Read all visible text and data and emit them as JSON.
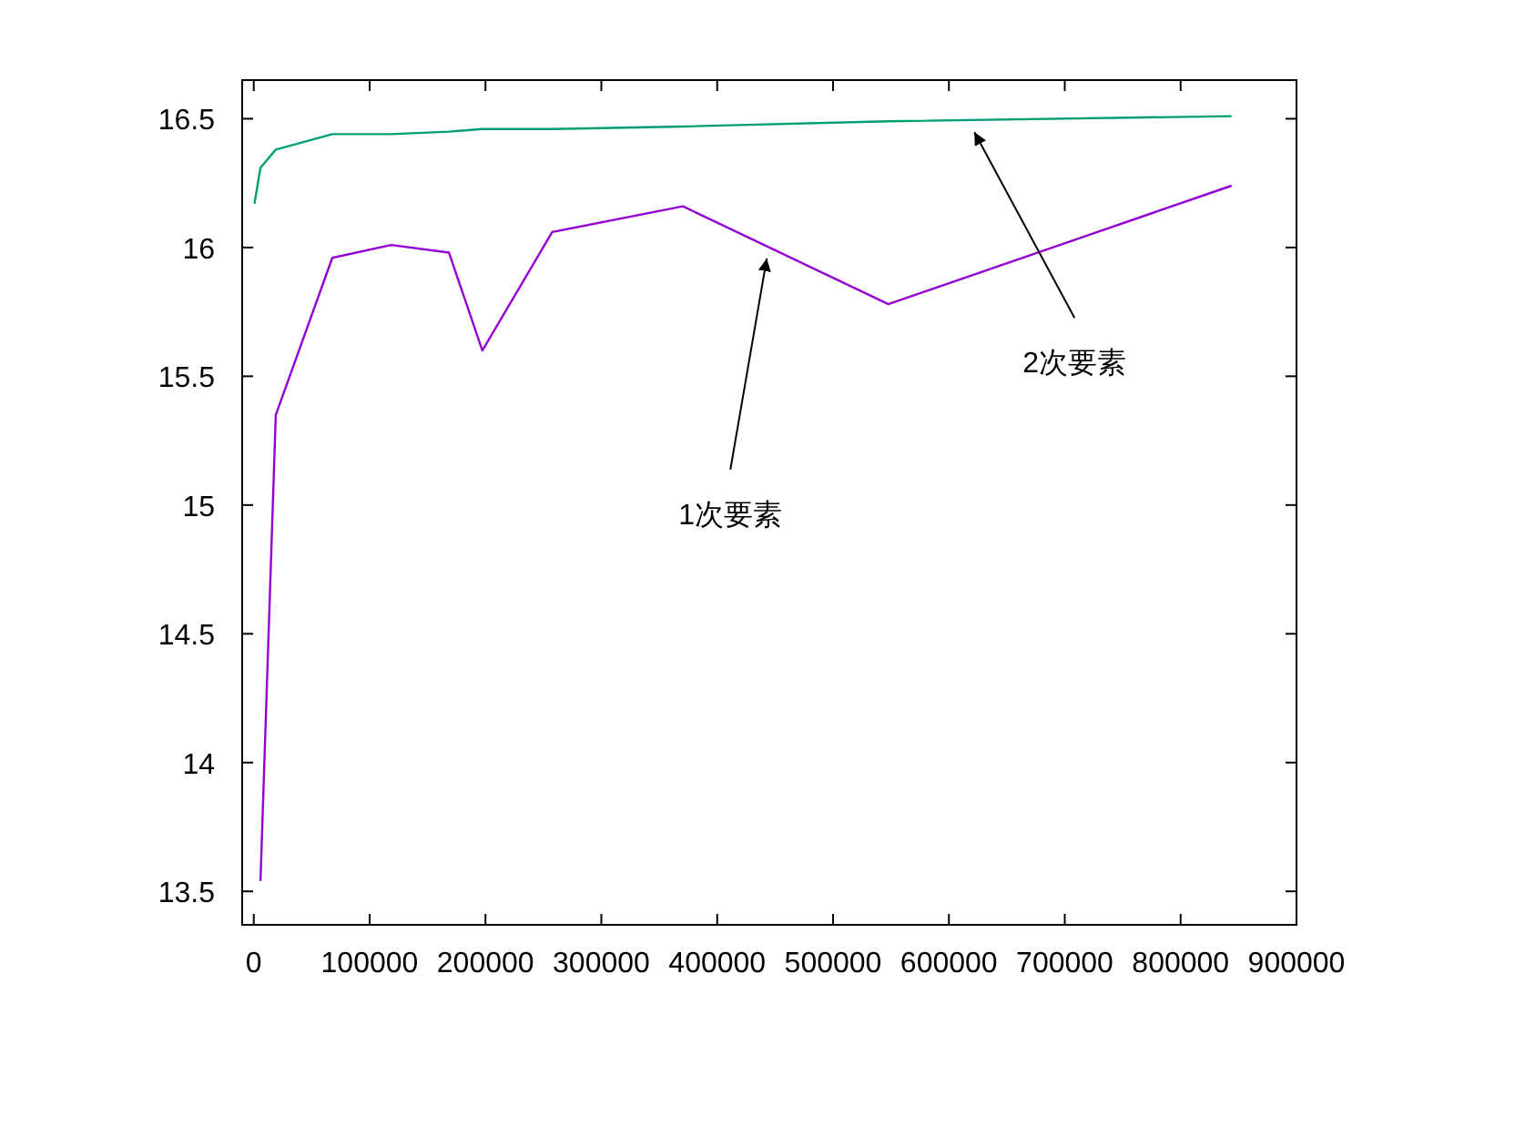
{
  "chart_data": {
    "type": "line",
    "series": [
      {
        "color": "#9400d3",
        "x": [
          5800,
          19000,
          67800,
          118600,
          168500,
          197300,
          257600,
          370400,
          547700,
          844000
        ],
        "values": [
          13.54,
          15.35,
          15.96,
          16.01,
          15.98,
          15.6,
          16.06,
          16.16,
          15.78,
          16.24
        ]
      },
      {
        "color": "#009e73",
        "x": [
          600,
          5800,
          19000,
          67800,
          118600,
          168500,
          197300,
          257600,
          370400,
          547700,
          844000
        ],
        "values": [
          16.17,
          16.31,
          16.38,
          16.44,
          16.44,
          16.45,
          16.46,
          16.46,
          16.47,
          16.49,
          16.51
        ]
      }
    ],
    "xlim": [
      -10000,
      900000
    ],
    "ylim": [
      13.37,
      16.65
    ],
    "xticks": [
      0,
      100000,
      200000,
      300000,
      400000,
      500000,
      600000,
      700000,
      800000,
      900000
    ],
    "yticks": [
      13.5,
      14,
      14.5,
      15,
      15.5,
      16,
      16.5
    ],
    "annotations": [
      {
        "text": "1次要素",
        "x": 442800,
        "y": 16.0
      },
      {
        "text": "2次要素",
        "x": 622000,
        "y": 16.49
      }
    ]
  }
}
